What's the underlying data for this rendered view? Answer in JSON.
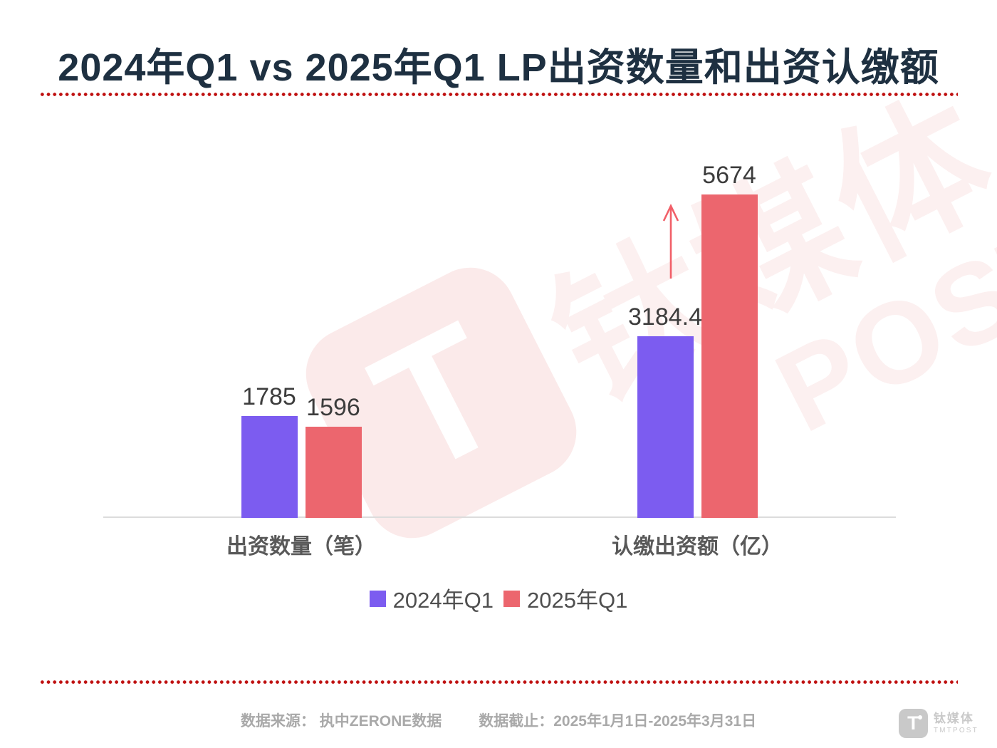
{
  "title": "2024年Q1 vs 2025年Q1 LP出资数量和出资认缴额",
  "colors": {
    "title_text": "#1e3041",
    "bar_2024": "#7c5cf0",
    "bar_2025": "#ec666e",
    "dotted": "#bf1010",
    "axis": "#dcdcdc",
    "value_label": "#3c3c3c",
    "category_label": "#595959",
    "legend_text": "#4f4f4f",
    "footer_text": "#a9a9a9",
    "watermark_logo": "#fbeaea",
    "watermark_text": "#fcf0f0",
    "arrow": "#f15f68",
    "corner_logo": "#c9c9c9"
  },
  "chart_data": {
    "type": "bar",
    "title": "2024年Q1 vs 2025年Q1 LP出资数量和出资认缴额",
    "categories": [
      "出资数量（笔）",
      "认缴出资额（亿）"
    ],
    "series": [
      {
        "name": "2024年Q1",
        "color": "#7c5cf0",
        "values": [
          1785,
          3184.4
        ]
      },
      {
        "name": "2025年Q1",
        "color": "#ec666e",
        "values": [
          1596,
          5674
        ]
      }
    ],
    "value_labels": [
      "1785",
      "1596",
      "3184.4",
      "5674"
    ],
    "ylim": [
      0,
      6000
    ],
    "grid": false,
    "axis_visible": "x-baseline only",
    "legend_position": "bottom",
    "annotation": "red up-arrow beside the 2025年Q1 认缴出资额 bar indicating increase"
  },
  "footer": {
    "source": "数据来源： 执中ZERONE数据",
    "cutoff": "数据截止：2025年1月1日-2025年3月31日"
  },
  "watermark": {
    "letter": "T",
    "brand_cn": "钛媒体",
    "brand_en": "POST"
  },
  "logo": {
    "letter": "T",
    "brand_cn": "钛媒体",
    "brand_en": "TMTPOST"
  }
}
